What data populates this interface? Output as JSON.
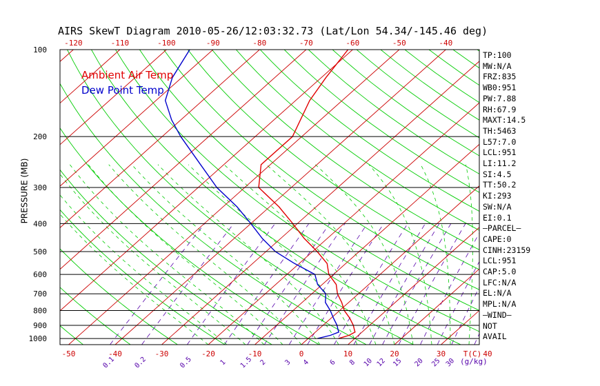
{
  "title": "AIRS SkewT Diagram 2010-05-26/12:03:32.73 (Lat/Lon 54.34/-145.46 deg)",
  "legend": {
    "ambient_label": "Ambient Air Temp",
    "dewpoint_label": "Dew Point Temp"
  },
  "colors": {
    "ambient": "#e00000",
    "dewpoint": "#0000cc",
    "isotherm": "#cc0000",
    "dry_adiabat": "#00cc00",
    "moist_adiabat": "#00cc00",
    "mixing_ratio": "#5500aa",
    "axis": "#000000"
  },
  "side_panel": [
    "TP:100",
    "MW:N/A",
    "FRZ:835",
    "WB0:951",
    "PW:7.88",
    "RH:67.9",
    "MAXT:14.5",
    "TH:5463",
    "L57:7.0",
    "LCL:951",
    "LI:11.2",
    "SI:4.5",
    "TT:50.2",
    "KI:293",
    "SW:N/A",
    "EI:0.1",
    "—PARCEL—",
    "CAPE:0",
    "CINH:23159",
    "LCL:951",
    "CAP:5.0",
    "LFC:N/A",
    "EL:N/A",
    "MPL:N/A",
    "—WIND—",
    "NOT",
    "AVAIL"
  ],
  "chart_data": {
    "type": "line",
    "title": "AIRS SkewT Diagram 2010-05-26/12:03:32.73 (Lat/Lon 54.34/-145.46 deg)",
    "ylabel": "PRESSURE (MB)",
    "xlabel": "T(C)",
    "mixing_ratio_unit": "(g/kg)",
    "y_scale": "log",
    "ylim": [
      1050,
      100
    ],
    "pressure_ticks": [
      100,
      200,
      300,
      400,
      500,
      600,
      700,
      800,
      900,
      1000
    ],
    "bottom_temp_ticks": [
      -50,
      -40,
      -30,
      -20,
      -10,
      0,
      10,
      20,
      30,
      40
    ],
    "top_temp_ticks": [
      -120,
      -110,
      -100,
      -90,
      -80,
      -70,
      -60,
      -50,
      -40
    ],
    "mixing_ratio_labels": [
      "0.1",
      "0.2",
      "0.5",
      "1",
      "1.5",
      "2",
      "3",
      "4",
      "6",
      "8",
      "10",
      "12",
      "15",
      "20",
      "25",
      "30",
      "40"
    ],
    "series": [
      {
        "name": "Ambient Air Temp",
        "pressure": [
          1000,
          975,
          950,
          925,
          900,
          850,
          800,
          750,
          700,
          650,
          600,
          550,
          500,
          450,
          400,
          350,
          300,
          250,
          200,
          150,
          125,
          100
        ],
        "temperature": [
          6.5,
          8,
          8.5,
          7.5,
          6.5,
          4,
          1,
          -1.5,
          -4.5,
          -7,
          -11,
          -14,
          -19,
          -25,
          -31,
          -38,
          -47,
          -52,
          -52,
          -57,
          -59,
          -61
        ]
      },
      {
        "name": "Dew Point Temp",
        "pressure": [
          1000,
          975,
          950,
          925,
          900,
          850,
          800,
          750,
          700,
          650,
          600,
          550,
          500,
          450,
          400,
          350,
          300,
          250,
          200,
          175,
          150,
          125,
          100
        ],
        "temperature": [
          2,
          4,
          5,
          4,
          3,
          0.5,
          -2,
          -5,
          -7,
          -11,
          -14,
          -21,
          -28,
          -34,
          -40,
          -47,
          -56,
          -65,
          -76,
          -82,
          -88,
          -92,
          -95
        ]
      }
    ]
  }
}
